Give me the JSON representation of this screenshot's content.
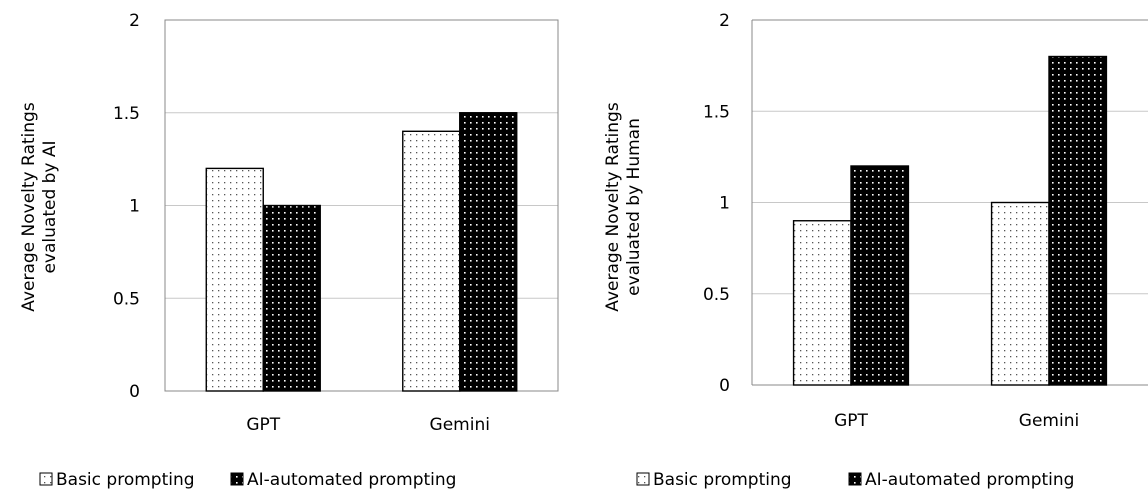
{
  "chart_data": [
    {
      "type": "bar",
      "categories": [
        "GPT",
        "Gemini"
      ],
      "series": [
        {
          "name": "Basic prompting",
          "values": [
            1.2,
            1.4
          ]
        },
        {
          "name": "AI-automated prompting",
          "values": [
            1.0,
            1.5
          ]
        }
      ],
      "ylabel_line1": "Average Novelty Ratings",
      "ylabel_line2": "evaluated by AI",
      "ylim": [
        0,
        2
      ],
      "yticks": [
        "0",
        "0.5",
        "1",
        "1.5",
        "2"
      ],
      "grid": true,
      "legend_position": "bottom"
    },
    {
      "type": "bar",
      "categories": [
        "GPT",
        "Gemini"
      ],
      "series": [
        {
          "name": "Basic prompting",
          "values": [
            0.9,
            1.0
          ]
        },
        {
          "name": "AI-automated prompting",
          "values": [
            1.2,
            1.8
          ]
        }
      ],
      "ylabel_line1": "Average Novelty Ratings",
      "ylabel_line2": "evaluated by Human",
      "ylim": [
        0,
        2
      ],
      "yticks": [
        "0",
        "0.5",
        "1",
        "1.5",
        "2"
      ],
      "grid": true,
      "legend_position": "bottom"
    }
  ],
  "style": {
    "basic_fill": "#ffffff",
    "basic_dot": "#555555",
    "auto_fill": "#000000",
    "auto_dot": "#ffffff",
    "grid_color": "#c8c8c8",
    "axis_color": "#888888"
  }
}
